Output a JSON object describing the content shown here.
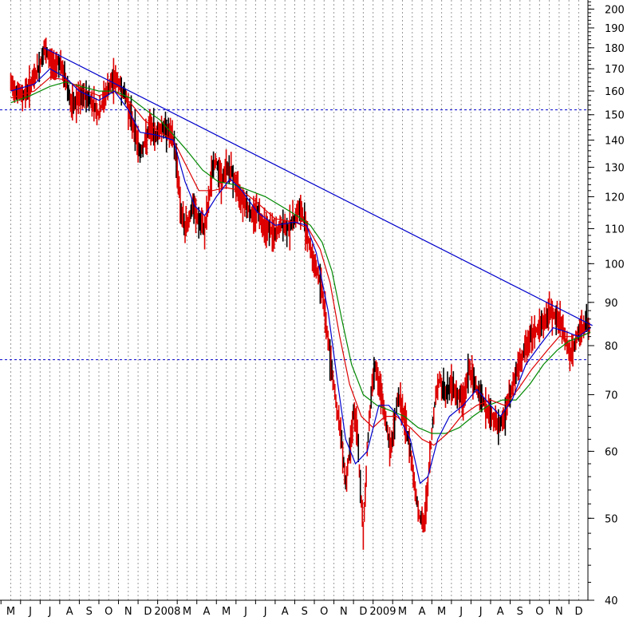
{
  "chart_data": {
    "type": "line",
    "title": "",
    "xlabel": "",
    "ylabel": "",
    "y_scale": "log",
    "ylim": [
      40,
      205
    ],
    "y_ticks": [
      40,
      50,
      60,
      70,
      80,
      90,
      100,
      110,
      120,
      130,
      140,
      150,
      160,
      170,
      180,
      190,
      200
    ],
    "month_labels": [
      "M",
      "J",
      "J",
      "A",
      "S",
      "O",
      "N",
      "D",
      "2008",
      "M",
      "A",
      "M",
      "J",
      "J",
      "A",
      "S",
      "O",
      "N",
      "D",
      "2009",
      "M",
      "A",
      "M",
      "J",
      "J",
      "A",
      "S",
      "O",
      "N",
      "D"
    ],
    "horizontal_reference_lines": [
      152,
      77
    ],
    "trendline": {
      "from": {
        "month_index": 1.7,
        "value": 180
      },
      "to": {
        "month_index": 29.7,
        "value": 84.5
      }
    },
    "grid": "vertical dotted",
    "colors": {
      "price": "#dd0000",
      "price_dark": "#000000",
      "ma_short": "#0000cc",
      "ma_mid": "#dd0000",
      "ma_long": "#008800",
      "trendline": "#0000cc",
      "reference": "#0000cc"
    },
    "price_path": [
      [
        0,
        163
      ],
      [
        0.3,
        160
      ],
      [
        0.6,
        158
      ],
      [
        0.9,
        161
      ],
      [
        1.2,
        166
      ],
      [
        1.5,
        172
      ],
      [
        1.7,
        179
      ],
      [
        1.9,
        176
      ],
      [
        2.2,
        171
      ],
      [
        2.4,
        174
      ],
      [
        2.6,
        170
      ],
      [
        2.9,
        162
      ],
      [
        3.1,
        153
      ],
      [
        3.4,
        156
      ],
      [
        3.8,
        158
      ],
      [
        4.2,
        155
      ],
      [
        4.5,
        150
      ],
      [
        4.8,
        158
      ],
      [
        5.1,
        163
      ],
      [
        5.3,
        166
      ],
      [
        5.6,
        162
      ],
      [
        5.9,
        157
      ],
      [
        6.1,
        150
      ],
      [
        6.4,
        142
      ],
      [
        6.6,
        135
      ],
      [
        6.9,
        140
      ],
      [
        7.1,
        145
      ],
      [
        7.4,
        142
      ],
      [
        7.7,
        145
      ],
      [
        8.0,
        144
      ],
      [
        8.3,
        140
      ],
      [
        8.5,
        130
      ],
      [
        8.7,
        115
      ],
      [
        8.9,
        110
      ],
      [
        9.1,
        113
      ],
      [
        9.3,
        117
      ],
      [
        9.6,
        112
      ],
      [
        9.9,
        110
      ],
      [
        10.1,
        118
      ],
      [
        10.3,
        130
      ],
      [
        10.5,
        132
      ],
      [
        10.8,
        125
      ],
      [
        11.0,
        130
      ],
      [
        11.3,
        128
      ],
      [
        11.6,
        122
      ],
      [
        11.8,
        120
      ],
      [
        12.0,
        118
      ],
      [
        12.3,
        114
      ],
      [
        12.6,
        116
      ],
      [
        12.9,
        111
      ],
      [
        13.2,
        110
      ],
      [
        13.5,
        108
      ],
      [
        13.8,
        111
      ],
      [
        14.1,
        110
      ],
      [
        14.4,
        112
      ],
      [
        14.7,
        116
      ],
      [
        14.9,
        114
      ],
      [
        15.1,
        110
      ],
      [
        15.3,
        104
      ],
      [
        15.5,
        100
      ],
      [
        15.7,
        97
      ],
      [
        15.9,
        93
      ],
      [
        16.1,
        85
      ],
      [
        16.3,
        78
      ],
      [
        16.5,
        72
      ],
      [
        16.7,
        66
      ],
      [
        16.9,
        62
      ],
      [
        17.1,
        55
      ],
      [
        17.3,
        60
      ],
      [
        17.5,
        67
      ],
      [
        17.7,
        63
      ],
      [
        17.9,
        52
      ],
      [
        18.0,
        48
      ],
      [
        18.2,
        60
      ],
      [
        18.4,
        70
      ],
      [
        18.6,
        76
      ],
      [
        18.8,
        72
      ],
      [
        19.0,
        68
      ],
      [
        19.2,
        64
      ],
      [
        19.4,
        60
      ],
      [
        19.6,
        65
      ],
      [
        19.8,
        70
      ],
      [
        20.0,
        67
      ],
      [
        20.3,
        62
      ],
      [
        20.5,
        58
      ],
      [
        20.7,
        53
      ],
      [
        20.9,
        50
      ],
      [
        21.1,
        49
      ],
      [
        21.3,
        55
      ],
      [
        21.5,
        63
      ],
      [
        21.7,
        70
      ],
      [
        21.9,
        73
      ],
      [
        22.2,
        70
      ],
      [
        22.5,
        72
      ],
      [
        22.8,
        70
      ],
      [
        23.1,
        69
      ],
      [
        23.4,
        75
      ],
      [
        23.7,
        72
      ],
      [
        24.0,
        70
      ],
      [
        24.3,
        67
      ],
      [
        24.6,
        66
      ],
      [
        24.9,
        64
      ],
      [
        25.2,
        66
      ],
      [
        25.5,
        70
      ],
      [
        25.8,
        74
      ],
      [
        26.1,
        77
      ],
      [
        26.4,
        81
      ],
      [
        26.7,
        83
      ],
      [
        27.0,
        84
      ],
      [
        27.3,
        86
      ],
      [
        27.6,
        88
      ],
      [
        27.9,
        86
      ],
      [
        28.2,
        84
      ],
      [
        28.4,
        80
      ],
      [
        28.6,
        78
      ],
      [
        28.8,
        80
      ],
      [
        29.0,
        83
      ],
      [
        29.2,
        84
      ],
      [
        29.4,
        85
      ],
      [
        29.6,
        84
      ]
    ],
    "ma_short_path": [
      [
        0,
        160
      ],
      [
        1.2,
        163
      ],
      [
        2.0,
        170
      ],
      [
        2.8,
        166
      ],
      [
        3.5,
        160
      ],
      [
        4.5,
        156
      ],
      [
        5.3,
        160
      ],
      [
        6.0,
        152
      ],
      [
        6.6,
        143
      ],
      [
        7.4,
        142
      ],
      [
        8.3,
        140
      ],
      [
        8.9,
        125
      ],
      [
        9.4,
        117
      ],
      [
        9.9,
        114
      ],
      [
        10.5,
        120
      ],
      [
        11.2,
        126
      ],
      [
        11.8,
        122
      ],
      [
        12.6,
        115
      ],
      [
        13.5,
        111
      ],
      [
        14.5,
        112
      ],
      [
        15.1,
        111
      ],
      [
        15.6,
        103
      ],
      [
        16.2,
        88
      ],
      [
        16.7,
        72
      ],
      [
        17.1,
        62
      ],
      [
        17.6,
        58
      ],
      [
        18.2,
        60
      ],
      [
        18.8,
        68
      ],
      [
        19.3,
        68
      ],
      [
        19.8,
        66
      ],
      [
        20.4,
        62
      ],
      [
        20.9,
        55
      ],
      [
        21.3,
        56
      ],
      [
        21.8,
        62
      ],
      [
        22.4,
        66
      ],
      [
        23.1,
        68
      ],
      [
        23.8,
        71
      ],
      [
        24.5,
        68
      ],
      [
        25.0,
        66
      ],
      [
        25.6,
        69
      ],
      [
        26.3,
        76
      ],
      [
        27.0,
        80
      ],
      [
        27.7,
        84
      ],
      [
        28.4,
        83
      ],
      [
        29.0,
        82
      ],
      [
        29.6,
        84
      ]
    ],
    "ma_mid_path": [
      [
        0,
        157
      ],
      [
        1.2,
        160
      ],
      [
        2.0,
        166
      ],
      [
        2.8,
        165
      ],
      [
        3.6,
        161
      ],
      [
        4.5,
        158
      ],
      [
        5.3,
        160
      ],
      [
        6.1,
        155
      ],
      [
        6.8,
        148
      ],
      [
        7.6,
        143
      ],
      [
        8.3,
        140
      ],
      [
        9.0,
        130
      ],
      [
        9.6,
        122
      ],
      [
        10.3,
        122
      ],
      [
        11.0,
        123
      ],
      [
        11.8,
        122
      ],
      [
        12.6,
        118
      ],
      [
        13.5,
        113
      ],
      [
        14.5,
        112
      ],
      [
        15.2,
        110
      ],
      [
        15.8,
        104
      ],
      [
        16.3,
        95
      ],
      [
        16.8,
        82
      ],
      [
        17.3,
        72
      ],
      [
        17.9,
        66
      ],
      [
        18.5,
        64
      ],
      [
        19.1,
        66
      ],
      [
        19.7,
        66
      ],
      [
        20.4,
        64
      ],
      [
        21.0,
        62
      ],
      [
        21.6,
        61
      ],
      [
        22.3,
        63
      ],
      [
        23.0,
        66
      ],
      [
        23.8,
        68
      ],
      [
        24.5,
        69
      ],
      [
        25.2,
        68
      ],
      [
        25.9,
        71
      ],
      [
        26.6,
        75
      ],
      [
        27.4,
        79
      ],
      [
        28.0,
        82
      ],
      [
        28.6,
        82
      ],
      [
        29.2,
        83
      ],
      [
        29.6,
        84
      ]
    ],
    "ma_long_path": [
      [
        0,
        155
      ],
      [
        1.0,
        158
      ],
      [
        2.0,
        162
      ],
      [
        2.8,
        164
      ],
      [
        3.6,
        162
      ],
      [
        4.5,
        160
      ],
      [
        5.3,
        160
      ],
      [
        6.1,
        157
      ],
      [
        6.9,
        152
      ],
      [
        7.6,
        148
      ],
      [
        8.3,
        142
      ],
      [
        9.0,
        136
      ],
      [
        9.8,
        129
      ],
      [
        10.6,
        125
      ],
      [
        11.4,
        124
      ],
      [
        12.2,
        122
      ],
      [
        13.0,
        120
      ],
      [
        13.8,
        117
      ],
      [
        14.6,
        114
      ],
      [
        15.3,
        111
      ],
      [
        15.9,
        106
      ],
      [
        16.4,
        98
      ],
      [
        16.9,
        86
      ],
      [
        17.4,
        76
      ],
      [
        18.0,
        70
      ],
      [
        18.7,
        68
      ],
      [
        19.4,
        67
      ],
      [
        20.1,
        66
      ],
      [
        20.8,
        64
      ],
      [
        21.5,
        63
      ],
      [
        22.2,
        63
      ],
      [
        22.9,
        64
      ],
      [
        23.6,
        66
      ],
      [
        24.4,
        68
      ],
      [
        25.1,
        69
      ],
      [
        25.8,
        69
      ],
      [
        26.5,
        72
      ],
      [
        27.2,
        76
      ],
      [
        27.9,
        79
      ],
      [
        28.5,
        81
      ],
      [
        29.1,
        82
      ],
      [
        29.6,
        83
      ]
    ]
  }
}
